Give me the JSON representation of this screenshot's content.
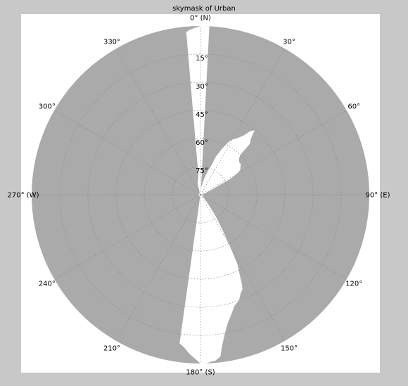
{
  "chart_data": {
    "type": "polar-skymask",
    "title": "skymask of Urban",
    "colors": {
      "background": "#c8c8c8",
      "panel": "#ffffff",
      "obstruction": "#aaaaaa",
      "sky": "#ffffff",
      "grid": "#888888"
    },
    "azimuth_ticks": [
      {
        "az": 0,
        "label": "0° (N)"
      },
      {
        "az": 30,
        "label": "30°"
      },
      {
        "az": 60,
        "label": "60°"
      },
      {
        "az": 90,
        "label": "90° (E)"
      },
      {
        "az": 120,
        "label": "120°"
      },
      {
        "az": 150,
        "label": "150°"
      },
      {
        "az": 180,
        "label": "180° (S)"
      },
      {
        "az": 210,
        "label": "210°"
      },
      {
        "az": 240,
        "label": "240°"
      },
      {
        "az": 270,
        "label": "270° (W)"
      },
      {
        "az": 300,
        "label": "300°"
      },
      {
        "az": 330,
        "label": "330°"
      }
    ],
    "elevation_ticks": [
      {
        "el": 15,
        "label": "15°"
      },
      {
        "el": 30,
        "label": "30°"
      },
      {
        "el": 45,
        "label": "45°"
      },
      {
        "el": 60,
        "label": "60°"
      },
      {
        "el": 75,
        "label": "75°"
      }
    ],
    "elevation_range": [
      0,
      90
    ],
    "grid": true,
    "skymask": {
      "azimuth": [
        0,
        2,
        3,
        5,
        6,
        8,
        10,
        12,
        15,
        18,
        20,
        22,
        25,
        28,
        30,
        33,
        36,
        38,
        40,
        42,
        44,
        45,
        47,
        50,
        53,
        55,
        58,
        60,
        62,
        65,
        68,
        72,
        76,
        80,
        85,
        90,
        95,
        100,
        105,
        110,
        115,
        120,
        125,
        130,
        135,
        138,
        140,
        143,
        145,
        148,
        150,
        152,
        154,
        155,
        156,
        158,
        160,
        163,
        165,
        168,
        170,
        172,
        173,
        174,
        175,
        176,
        178,
        180,
        184,
        186,
        188,
        190,
        200,
        210,
        220,
        230,
        240,
        250,
        260,
        270,
        280,
        290,
        300,
        310,
        320,
        330,
        340,
        342,
        344,
        345,
        346,
        348,
        350,
        352,
        353,
        354,
        355,
        356,
        358
      ],
      "elevation": [
        0,
        0,
        0,
        87,
        86,
        85,
        84,
        82,
        79,
        76,
        74,
        68,
        63,
        58,
        56,
        54,
        51,
        47,
        45,
        50,
        52,
        60,
        62,
        63,
        63,
        64,
        65,
        67,
        72,
        83,
        86,
        88,
        89,
        89,
        89,
        89,
        88,
        88,
        89,
        89,
        89,
        89,
        89,
        88,
        87,
        86,
        84,
        80,
        75,
        68,
        59,
        48,
        42,
        38,
        35,
        33,
        30,
        28,
        25,
        20,
        15,
        8,
        3,
        2,
        1,
        1,
        0,
        0,
        5,
        8,
        10,
        89,
        89,
        89,
        89,
        89,
        89,
        89,
        89,
        89,
        89,
        89,
        89,
        89,
        89,
        89,
        89,
        88,
        87,
        85,
        84,
        83,
        82,
        81,
        80,
        79,
        3,
        2,
        1
      ]
    }
  }
}
